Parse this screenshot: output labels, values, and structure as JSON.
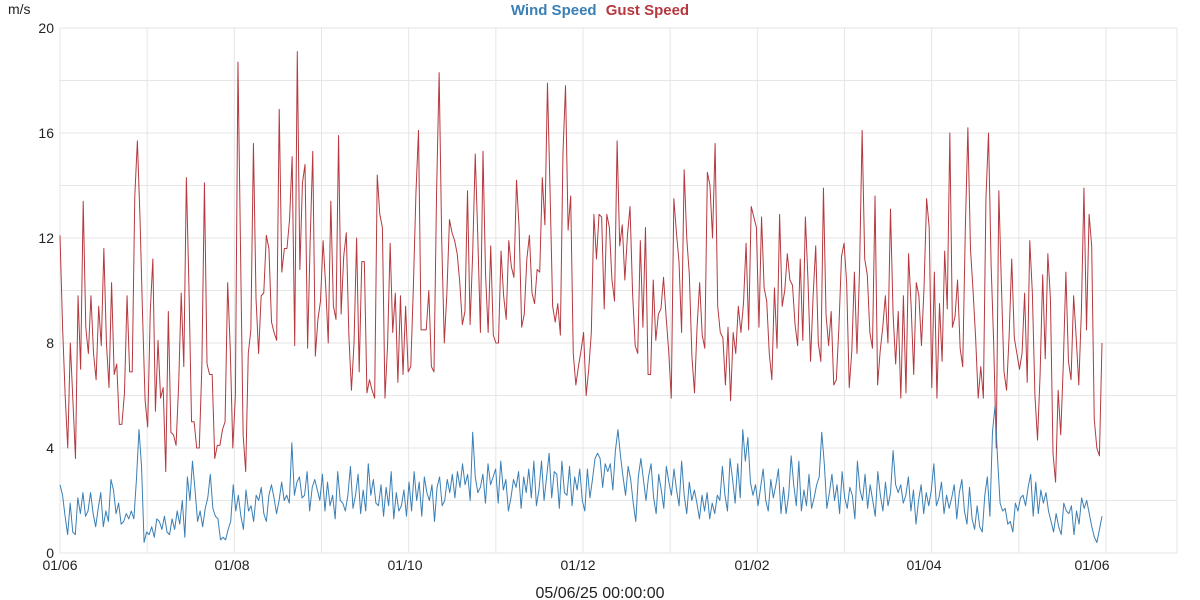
{
  "chart_data": {
    "type": "line",
    "title": "",
    "ylabel": "m/s",
    "xlabel": "05/06/25 00:00:00",
    "ylim": [
      0,
      20
    ],
    "y_ticks": [
      0,
      4,
      8,
      12,
      16,
      20
    ],
    "x_ticks": [
      "01/06",
      "01/08",
      "01/10",
      "01/12",
      "01/02",
      "01/04",
      "01/06"
    ],
    "grid": true,
    "legend": "top-center",
    "series": [
      {
        "name": "Wind Speed",
        "color": "#3a7fb5",
        "values": [
          2.6,
          2.2,
          1.4,
          0.7,
          1.9,
          0.8,
          0.7,
          2.1,
          1.5,
          2.3,
          1.4,
          1.6,
          2.3,
          1.5,
          1.0,
          1.7,
          2.3,
          1.0,
          1.6,
          1.2,
          2.8,
          2.4,
          1.5,
          1.9,
          1.1,
          1.2,
          1.5,
          1.3,
          1.6,
          1.3,
          2.8,
          4.7,
          3.3,
          0.4,
          0.8,
          0.7,
          1.0,
          0.6,
          1.3,
          1.2,
          0.9,
          1.4,
          0.8,
          0.7,
          1.3,
          0.9,
          1.6,
          1.1,
          2.0,
          0.6,
          2.9,
          2.0,
          3.5,
          2.4,
          1.2,
          1.6,
          1.0,
          1.7,
          2.1,
          3.0,
          1.7,
          1.4,
          1.3,
          0.5,
          0.6,
          0.5,
          0.9,
          1.2,
          2.6,
          1.6,
          2.2,
          1.4,
          0.9,
          2.4,
          1.6,
          1.8,
          1.2,
          2.2,
          2.0,
          2.5,
          1.5,
          1.2,
          2.2,
          2.6,
          2.1,
          1.5,
          2.0,
          2.7,
          2.0,
          2.2,
          1.9,
          4.2,
          2.2,
          2.7,
          2.9,
          2.1,
          2.2,
          3.1,
          1.6,
          2.5,
          2.8,
          2.4,
          2.0,
          3.0,
          1.6,
          2.7,
          1.8,
          2.2,
          1.3,
          3.1,
          2.0,
          1.9,
          1.6,
          2.2,
          3.3,
          1.7,
          2.2,
          3.0,
          1.5,
          2.4,
          1.6,
          3.4,
          2.2,
          2.8,
          1.9,
          1.8,
          2.6,
          1.4,
          2.5,
          1.8,
          3.1,
          1.3,
          2.3,
          1.6,
          1.8,
          2.4,
          1.4,
          2.7,
          1.6,
          3.1,
          2.0,
          2.7,
          1.4,
          2.9,
          2.3,
          2.0,
          2.6,
          1.2,
          2.5,
          2.9,
          1.8,
          2.0,
          2.8,
          2.3,
          3.0,
          2.1,
          3.1,
          2.5,
          3.4,
          2.6,
          3.0,
          2.0,
          4.6,
          2.9,
          2.3,
          2.5,
          3.0,
          1.9,
          3.4,
          2.6,
          2.9,
          3.2,
          1.9,
          3.5,
          2.4,
          2.8,
          1.6,
          2.1,
          2.8,
          2.5,
          3.1,
          1.7,
          2.9,
          2.3,
          3.2,
          2.1,
          3.5,
          1.8,
          2.4,
          3.5,
          2.0,
          2.9,
          3.8,
          2.1,
          3.1,
          3.0,
          1.7,
          3.5,
          2.3,
          2.2,
          3.3,
          1.8,
          2.9,
          2.4,
          3.2,
          2.0,
          1.6,
          3.2,
          2.1,
          2.8,
          3.6,
          3.8,
          3.6,
          2.5,
          3.4,
          3.1,
          3.4,
          2.4,
          3.9,
          4.7,
          3.7,
          2.9,
          2.2,
          3.3,
          2.8,
          1.9,
          1.2,
          2.9,
          3.6,
          2.8,
          2.0,
          2.9,
          3.4,
          2.1,
          1.5,
          3.0,
          2.4,
          1.7,
          3.3,
          2.7,
          2.2,
          3.2,
          2.4,
          1.8,
          3.5,
          2.2,
          1.5,
          2.7,
          2.0,
          2.4,
          1.9,
          1.3,
          2.2,
          1.6,
          2.3,
          1.3,
          1.9,
          1.5,
          2.2,
          2.0,
          3.3,
          2.2,
          1.6,
          3.6,
          2.8,
          1.9,
          3.4,
          2.1,
          4.7,
          3.5,
          4.4,
          2.7,
          2.2,
          2.6,
          1.8,
          2.5,
          3.2,
          2.0,
          1.6,
          2.8,
          2.1,
          2.6,
          3.2,
          1.5,
          2.5,
          1.5,
          2.2,
          3.7,
          2.6,
          1.8,
          3.5,
          1.6,
          2.4,
          1.8,
          3.0,
          1.7,
          2.1,
          2.6,
          2.9,
          4.6,
          3.4,
          1.7,
          2.3,
          3.0,
          2.0,
          2.6,
          1.5,
          3.1,
          2.1,
          1.7,
          2.5,
          2.2,
          1.3,
          3.5,
          2.4,
          2.0,
          3.0,
          1.7,
          2.6,
          2.0,
          1.4,
          3.1,
          2.2,
          1.6,
          2.7,
          1.8,
          2.3,
          3.9,
          2.6,
          2.3,
          2.6,
          1.9,
          2.2,
          2.9,
          1.6,
          2.4,
          1.1,
          2.0,
          2.6,
          1.5,
          2.3,
          1.8,
          2.4,
          3.4,
          1.8,
          2.1,
          2.7,
          1.5,
          2.2,
          1.7,
          2.1,
          2.6,
          1.3,
          2.3,
          2.8,
          1.6,
          1.1,
          2.5,
          1.3,
          0.9,
          1.8,
          1.0,
          0.8,
          2.2,
          2.9,
          1.4,
          4.6,
          5.6,
          3.6,
          1.9,
          1.6,
          1.7,
          1.1,
          1.2,
          0.8,
          1.9,
          1.6,
          2.1,
          2.2,
          1.8,
          2.5,
          3.0,
          1.4,
          2.7,
          1.5,
          2.4,
          1.9,
          2.3,
          1.6,
          1.2,
          0.8,
          1.5,
          1.0,
          0.7,
          1.9,
          1.6,
          1.5,
          1.8,
          0.7,
          1.6,
          1.1,
          2.1,
          1.7,
          2.0,
          1.5,
          1.0,
          0.6,
          0.4,
          0.9,
          1.4
        ]
      },
      {
        "name": "Gust Speed",
        "color": "#b5393f",
        "values": [
          12.1,
          8.6,
          6.0,
          4.0,
          8.0,
          5.8,
          3.6,
          9.8,
          7.0,
          13.4,
          8.6,
          7.6,
          9.8,
          7.6,
          6.6,
          9.4,
          7.9,
          11.6,
          8.0,
          6.3,
          10.3,
          6.8,
          7.2,
          4.9,
          4.9,
          6.1,
          9.8,
          6.9,
          6.9,
          13.6,
          15.7,
          12.8,
          9.1,
          5.8,
          4.8,
          9.2,
          11.2,
          5.4,
          8.1,
          5.9,
          6.3,
          3.1,
          9.2,
          4.6,
          4.5,
          4.1,
          6.4,
          9.9,
          7.1,
          14.3,
          10.1,
          5.0,
          5.0,
          4.0,
          4.0,
          7.1,
          14.1,
          7.2,
          6.8,
          6.8,
          3.6,
          4.1,
          4.1,
          4.7,
          5.0,
          10.3,
          7.8,
          4.0,
          6.0,
          18.7,
          11.5,
          4.5,
          3.1,
          7.6,
          8.5,
          15.6,
          9.7,
          7.6,
          9.8,
          9.9,
          12.1,
          11.6,
          8.8,
          8.4,
          8.1,
          16.9,
          10.7,
          11.6,
          11.6,
          12.7,
          15.1,
          7.9,
          19.1,
          10.8,
          14.1,
          14.8,
          7.8,
          11.9,
          15.3,
          7.5,
          8.9,
          9.6,
          11.9,
          10.2,
          8.0,
          13.4,
          9.4,
          8.9,
          15.9,
          9.1,
          11.3,
          12.2,
          8.3,
          6.2,
          8.0,
          12.0,
          6.9,
          11.1,
          11.1,
          6.1,
          6.6,
          6.2,
          5.9,
          14.4,
          12.9,
          12.4,
          5.9,
          7.9,
          11.8,
          8.4,
          9.9,
          6.5,
          9.8,
          6.8,
          9.4,
          6.9,
          7.1,
          10.1,
          13.7,
          16.1,
          8.5,
          8.5,
          8.5,
          10.0,
          7.1,
          6.9,
          13.7,
          18.3,
          11.9,
          8.0,
          9.9,
          12.7,
          12.2,
          11.9,
          11.4,
          10.3,
          8.7,
          9.2,
          13.8,
          8.7,
          11.4,
          15.2,
          12.0,
          8.4,
          15.3,
          10.6,
          8.4,
          11.7,
          8.3,
          8.0,
          8.0,
          11.5,
          9.8,
          8.9,
          11.9,
          10.9,
          10.5,
          14.2,
          12.4,
          8.6,
          9.1,
          11.2,
          12.1,
          9.9,
          9.5,
          10.8,
          10.7,
          14.3,
          12.5,
          17.9,
          13.8,
          9.4,
          8.8,
          9.5,
          8.3,
          15.2,
          17.8,
          12.3,
          13.6,
          7.6,
          6.4,
          7.1,
          7.7,
          8.4,
          6.0,
          7.0,
          8.4,
          12.9,
          11.2,
          12.9,
          12.8,
          9.3,
          12.9,
          12.4,
          10.4,
          9.6,
          15.7,
          11.7,
          12.5,
          10.4,
          12.1,
          13.2,
          9.9,
          7.9,
          7.6,
          11.9,
          8.6,
          12.4,
          6.8,
          6.8,
          10.4,
          8.1,
          9.1,
          9.3,
          10.5,
          9.0,
          7.7,
          5.9,
          13.5,
          12.2,
          11.1,
          8.4,
          14.6,
          12.0,
          10.6,
          7.5,
          6.1,
          8.6,
          10.3,
          8.3,
          7.8,
          14.5,
          14.0,
          12.0,
          15.6,
          9.4,
          8.4,
          8.2,
          6.4,
          8.6,
          5.8,
          8.4,
          7.6,
          9.4,
          8.4,
          9.5,
          11.8,
          8.5,
          13.2,
          12.8,
          12.4,
          8.6,
          12.8,
          10.1,
          9.6,
          7.6,
          6.6,
          10.1,
          7.8,
          12.9,
          9.4,
          10.0,
          11.4,
          10.4,
          10.2,
          8.7,
          7.9,
          11.2,
          8.1,
          12.8,
          10.4,
          7.3,
          9.8,
          11.7,
          8.0,
          7.3,
          13.9,
          9.1,
          7.9,
          9.2,
          6.4,
          6.6,
          8.6,
          11.3,
          11.8,
          10.3,
          6.3,
          7.7,
          10.7,
          7.6,
          10.8,
          16.1,
          11.2,
          10.6,
          8.4,
          7.8,
          13.6,
          6.4,
          7.7,
          8.6,
          9.8,
          8.0,
          13.1,
          9.1,
          7.2,
          9.2,
          5.9,
          9.8,
          6.1,
          11.4,
          9.4,
          6.8,
          10.3,
          9.8,
          7.9,
          10.1,
          13.5,
          12.4,
          6.3,
          10.7,
          5.9,
          9.5,
          7.3,
          11.5,
          9.3,
          16.0,
          8.6,
          9.0,
          10.4,
          7.8,
          7.1,
          12.3,
          16.2,
          11.6,
          10.0,
          8.2,
          5.9,
          7.1,
          5.9,
          13.5,
          16.0,
          11.0,
          8.0,
          4.0,
          13.8,
          10.2,
          6.9,
          6.2,
          8.3,
          11.2,
          8.2,
          7.6,
          7.0,
          7.6,
          9.9,
          6.5,
          11.9,
          9.9,
          6.0,
          4.3,
          6.8,
          10.6,
          7.4,
          11.4,
          9.7,
          3.8,
          2.7,
          6.2,
          4.5,
          7.2,
          10.7,
          7.3,
          6.6,
          9.8,
          8.2,
          6.4,
          9.2,
          13.9,
          8.5,
          12.9,
          11.7,
          5.1,
          4.0,
          3.7,
          8.0
        ]
      }
    ]
  }
}
